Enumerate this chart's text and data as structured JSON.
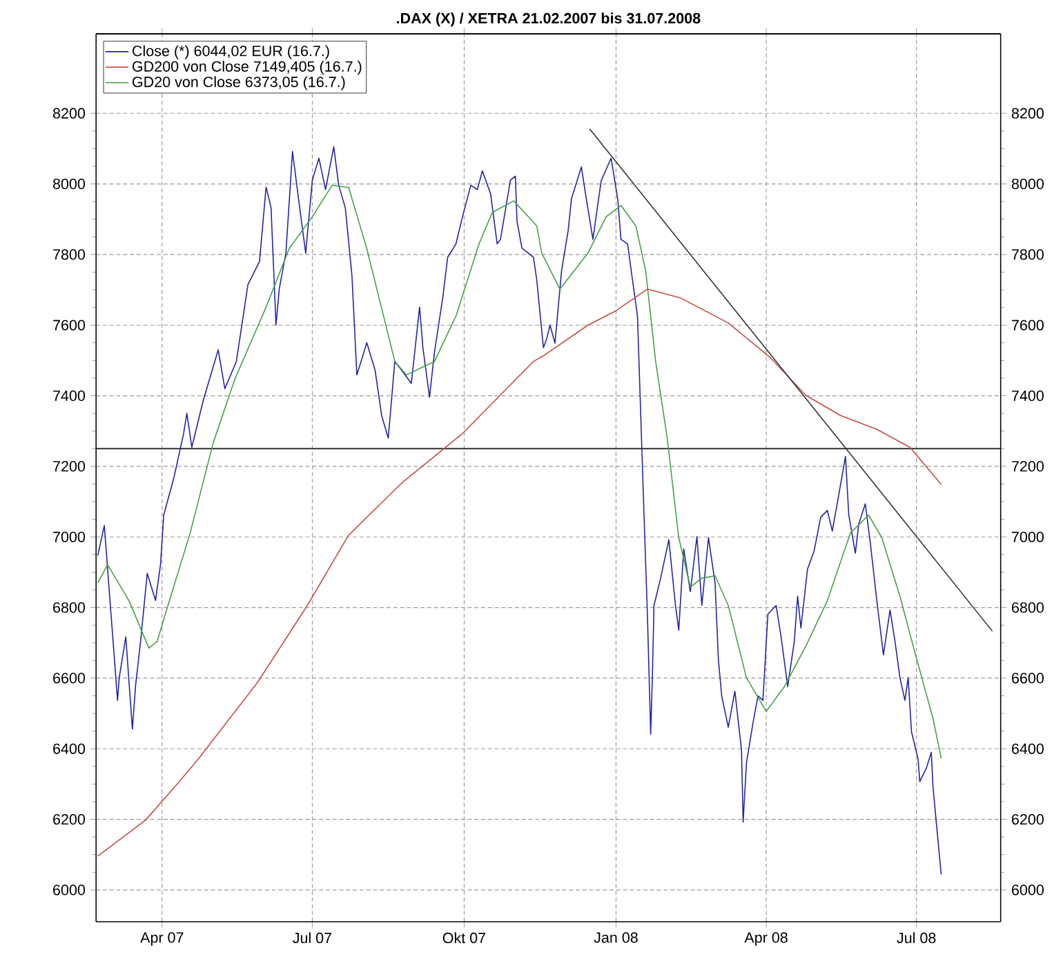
{
  "chart_data": {
    "type": "line",
    "title": ".DAX (X) / XETRA 21.02.2007 bis 31.07.2008",
    "xlim": [
      "2007-02-20",
      "2008-08-21"
    ],
    "xticks": [
      {
        "value": "2007-04-01",
        "label": "Apr 07"
      },
      {
        "value": "2007-07-01",
        "label": "Jul 07"
      },
      {
        "value": "2007-10-01",
        "label": "Okt 07"
      },
      {
        "value": "2008-01-01",
        "label": "Jan 08"
      },
      {
        "value": "2008-04-01",
        "label": "Apr 08"
      },
      {
        "value": "2008-07-01",
        "label": "Jul 08"
      }
    ],
    "ylim": [
      5910,
      8425
    ],
    "yticks": [
      6000,
      6200,
      6400,
      6600,
      6800,
      7000,
      7200,
      7400,
      7600,
      7800,
      8000,
      8200
    ],
    "y2lim": [
      5910,
      8425
    ],
    "y2ticks": [
      6000,
      6200,
      6400,
      6600,
      6800,
      7000,
      7200,
      7400,
      7600,
      7800,
      8000,
      8200
    ],
    "grid": true,
    "legend": "top left",
    "ref_lines": [
      {
        "axis": "y",
        "value": 7250,
        "color": "#303030"
      }
    ],
    "series": [
      {
        "name": "Close (*) 6044,02 EUR (16.7.)",
        "color": "#2020a8",
        "x": [
          "2007-02-21",
          "2007-02-25",
          "2007-03-05",
          "2007-03-06",
          "2007-03-10",
          "2007-03-14",
          "2007-03-16",
          "2007-03-19",
          "2007-03-23",
          "2007-03-28",
          "2007-03-31",
          "2007-04-02",
          "2007-04-08",
          "2007-04-14",
          "2007-04-16",
          "2007-04-19",
          "2007-04-26",
          "2007-05-05",
          "2007-05-09",
          "2007-05-16",
          "2007-05-23",
          "2007-05-30",
          "2007-06-03",
          "2007-06-06",
          "2007-06-09",
          "2007-06-11",
          "2007-06-15",
          "2007-06-19",
          "2007-06-23",
          "2007-06-27",
          "2007-07-01",
          "2007-07-05",
          "2007-07-09",
          "2007-07-14",
          "2007-07-17",
          "2007-07-21",
          "2007-07-25",
          "2007-07-28",
          "2007-08-03",
          "2007-08-08",
          "2007-08-12",
          "2007-08-16",
          "2007-08-20",
          "2007-08-24",
          "2007-08-30",
          "2007-09-04",
          "2007-09-06",
          "2007-09-10",
          "2007-09-13",
          "2007-09-18",
          "2007-09-21",
          "2007-09-26",
          "2007-09-30",
          "2007-10-05",
          "2007-10-09",
          "2007-10-12",
          "2007-10-17",
          "2007-10-21",
          "2007-10-23",
          "2007-10-29",
          "2007-11-01",
          "2007-11-02",
          "2007-11-05",
          "2007-11-12",
          "2007-11-14",
          "2007-11-18",
          "2007-11-20",
          "2007-11-22",
          "2007-11-25",
          "2007-11-29",
          "2007-12-03",
          "2007-12-05",
          "2007-12-11",
          "2007-12-14",
          "2007-12-18",
          "2007-12-23",
          "2007-12-29",
          "2008-01-02",
          "2008-01-04",
          "2008-01-08",
          "2008-01-11",
          "2008-01-14",
          "2008-01-18",
          "2008-01-20",
          "2008-01-22",
          "2008-01-23",
          "2008-01-24",
          "2008-01-28",
          "2008-02-02",
          "2008-02-06",
          "2008-02-08",
          "2008-02-11",
          "2008-02-15",
          "2008-02-19",
          "2008-02-22",
          "2008-02-26",
          "2008-03-01",
          "2008-03-03",
          "2008-03-05",
          "2008-03-09",
          "2008-03-13",
          "2008-03-17",
          "2008-03-18",
          "2008-03-20",
          "2008-03-24",
          "2008-03-27",
          "2008-03-30",
          "2008-04-02",
          "2008-04-07",
          "2008-04-10",
          "2008-04-14",
          "2008-04-18",
          "2008-04-20",
          "2008-04-22",
          "2008-04-26",
          "2008-04-30",
          "2008-05-04",
          "2008-05-08",
          "2008-05-11",
          "2008-05-14",
          "2008-05-19",
          "2008-05-21",
          "2008-05-25",
          "2008-05-27",
          "2008-05-31",
          "2008-06-03",
          "2008-06-07",
          "2008-06-11",
          "2008-06-15",
          "2008-06-18",
          "2008-06-21",
          "2008-06-24",
          "2008-06-26",
          "2008-06-28",
          "2008-07-02",
          "2008-07-03",
          "2008-07-07",
          "2008-07-10",
          "2008-07-11",
          "2008-07-13",
          "2008-07-16"
        ],
        "values": [
          6947,
          7032,
          6537,
          6600,
          6717,
          6456,
          6582,
          6705,
          6897,
          6820,
          6920,
          7062,
          7165,
          7292,
          7350,
          7254,
          7388,
          7530,
          7420,
          7497,
          7715,
          7780,
          7991,
          7933,
          7600,
          7703,
          7804,
          8092,
          7945,
          7804,
          8010,
          8073,
          7984,
          8105,
          7996,
          7932,
          7741,
          7459,
          7550,
          7473,
          7344,
          7280,
          7497,
          7473,
          7435,
          7651,
          7536,
          7396,
          7523,
          7677,
          7792,
          7830,
          7907,
          7996,
          7984,
          8037,
          7972,
          7830,
          7843,
          8010,
          8022,
          7895,
          7818,
          7792,
          7727,
          7536,
          7561,
          7600,
          7549,
          7753,
          7868,
          7958,
          8048,
          7958,
          7843,
          8009,
          8073,
          7958,
          7843,
          7830,
          7727,
          7625,
          7056,
          6782,
          6441,
          6601,
          6806,
          6883,
          6992,
          6806,
          6736,
          6966,
          6845,
          7001,
          6806,
          6998,
          6870,
          6653,
          6550,
          6461,
          6563,
          6397,
          6192,
          6359,
          6474,
          6550,
          6537,
          6781,
          6806,
          6717,
          6576,
          6704,
          6832,
          6742,
          6909,
          6960,
          7056,
          7075,
          7017,
          7094,
          7228,
          7062,
          6954,
          7036,
          7094,
          6985,
          6819,
          6666,
          6793,
          6704,
          6601,
          6537,
          6601,
          6448,
          6371,
          6307,
          6345,
          6390,
          6294,
          6192,
          6044
        ]
      },
      {
        "name": "GD200 von Close 7149,405 (16.7.)",
        "color": "#c84a40",
        "x": [
          "2007-02-21",
          "2007-03-22",
          "2007-04-09",
          "2007-04-23",
          "2007-05-29",
          "2007-06-28",
          "2007-07-23",
          "2007-08-24",
          "2007-09-30",
          "2007-11-12",
          "2007-11-19",
          "2007-12-15",
          "2007-12-31",
          "2008-01-20",
          "2008-02-09",
          "2008-03-09",
          "2008-04-03",
          "2008-04-25",
          "2008-05-16",
          "2008-06-07",
          "2008-06-27",
          "2008-07-16"
        ],
        "values": [
          6096,
          6198,
          6294,
          6371,
          6589,
          6806,
          7005,
          7152,
          7293,
          7497,
          7516,
          7600,
          7638,
          7702,
          7677,
          7606,
          7510,
          7401,
          7344,
          7305,
          7254,
          7149
        ]
      },
      {
        "name": "GD20 von Close 6373,05 (16.7.)",
        "color": "#40a040",
        "x": [
          "2007-02-21",
          "2007-02-27",
          "2007-03-12",
          "2007-03-24",
          "2007-03-29",
          "2007-04-05",
          "2007-04-18",
          "2007-05-02",
          "2007-05-15",
          "2007-06-03",
          "2007-06-17",
          "2007-07-01",
          "2007-07-13",
          "2007-07-23",
          "2007-08-03",
          "2007-08-20",
          "2007-08-27",
          "2007-09-13",
          "2007-09-26",
          "2007-10-10",
          "2007-10-18",
          "2007-10-31",
          "2007-11-14",
          "2007-11-17",
          "2007-11-28",
          "2007-12-15",
          "2007-12-26",
          "2008-01-04",
          "2008-01-13",
          "2008-01-19",
          "2008-01-25",
          "2008-02-01",
          "2008-02-08",
          "2008-02-15",
          "2008-02-22",
          "2008-03-01",
          "2008-03-09",
          "2008-03-20",
          "2008-04-01",
          "2008-04-12",
          "2008-04-25",
          "2008-05-08",
          "2008-05-22",
          "2008-06-02",
          "2008-06-10",
          "2008-06-21",
          "2008-06-29",
          "2008-07-11",
          "2008-07-16"
        ],
        "values": [
          6870,
          6921,
          6819,
          6685,
          6704,
          6813,
          7011,
          7267,
          7446,
          7651,
          7817,
          7907,
          7996,
          7990,
          7817,
          7497,
          7459,
          7497,
          7625,
          7830,
          7919,
          7952,
          7881,
          7804,
          7702,
          7804,
          7907,
          7939,
          7881,
          7753,
          7497,
          7280,
          6998,
          6858,
          6883,
          6890,
          6806,
          6601,
          6506,
          6576,
          6691,
          6819,
          7011,
          7062,
          6998,
          6832,
          6691,
          6486,
          6373
        ]
      },
      {
        "type": "line",
        "color": "#303030",
        "x": [
          "2007-12-16",
          "2008-08-16"
        ],
        "values": [
          8156,
          6733
        ]
      }
    ]
  }
}
